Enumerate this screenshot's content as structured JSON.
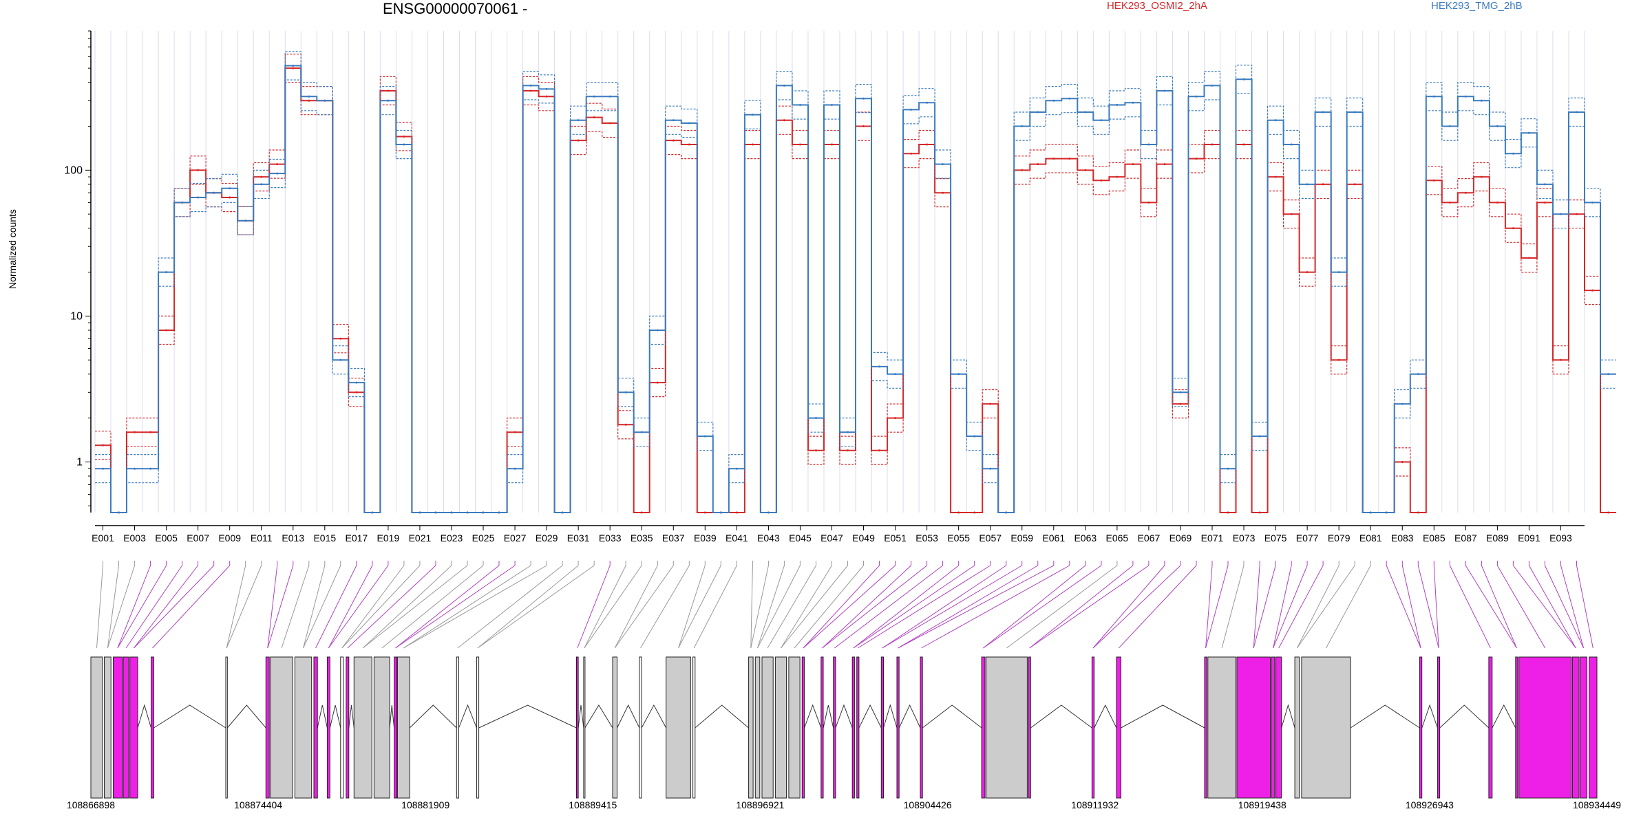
{
  "header": {
    "gene_title": "ENSG00000070061 -",
    "legend_a": "HEK293_OSMI2_2hA",
    "legend_b": "HEK293_TMG_2hB"
  },
  "colors": {
    "OSMI2": "#d62728",
    "TMG": "#3a7bbf",
    "exon_gray": "#cccccc",
    "exon_magenta": "#ee1fe6",
    "grid": "#dcdcf0",
    "connector_gray": "#999999",
    "connector_magenta": "#b040c0"
  },
  "chart_data": {
    "type": "line",
    "ylabel": "Normalized counts",
    "y_scale": "log",
    "ylim": [
      0.45,
      900
    ],
    "y_ticks": [
      "1",
      "10",
      "100"
    ],
    "x_tick_labels": [
      "E001",
      "E003",
      "E005",
      "E007",
      "E009",
      "E011",
      "E013",
      "E015",
      "E017",
      "E019",
      "E021",
      "E023",
      "E025",
      "E027",
      "E029",
      "E031",
      "E033",
      "E035",
      "E037",
      "E039",
      "E041",
      "E043",
      "E045",
      "E047",
      "E049",
      "E051",
      "E053",
      "E055",
      "E057",
      "E059",
      "E061",
      "E063",
      "E065",
      "E067",
      "E069",
      "E071",
      "E073",
      "E075",
      "E077",
      "E079",
      "E081",
      "E083",
      "E085",
      "E087",
      "E089",
      "E091",
      "E093"
    ],
    "exon_count": 94,
    "series": [
      {
        "name": "HEK293_OSMI2_2hA",
        "values": [
          1.3,
          0.45,
          1.6,
          1.6,
          8,
          60,
          100,
          70,
          65,
          45,
          90,
          110,
          500,
          300,
          300,
          7,
          3,
          0.45,
          350,
          170,
          0.45,
          0.45,
          0.45,
          0.45,
          0.45,
          0.45,
          1.6,
          350,
          320,
          0.45,
          160,
          230,
          210,
          1.8,
          0.45,
          3.5,
          160,
          150,
          0.45,
          0.45,
          0.45,
          150,
          0.45,
          220,
          150,
          1.2,
          150,
          1.2,
          200,
          1.2,
          2,
          130,
          150,
          70,
          0.45,
          0.45,
          2.5,
          0.45,
          100,
          110,
          120,
          120,
          100,
          85,
          90,
          110,
          60,
          110,
          2.5,
          120,
          150,
          0.45,
          150,
          0.45,
          90,
          50,
          20,
          80,
          5,
          80,
          0.45,
          0.45,
          1,
          0.45,
          85,
          60,
          70,
          90,
          60,
          40,
          25,
          60,
          5,
          50,
          15,
          0.45
        ]
      },
      {
        "name": "HEK293_TMG_2hB",
        "values": [
          0.9,
          0.45,
          0.9,
          0.9,
          20,
          60,
          65,
          70,
          75,
          45,
          80,
          95,
          520,
          320,
          300,
          5,
          3.5,
          0.45,
          300,
          150,
          0.45,
          0.45,
          0.45,
          0.45,
          0.45,
          0.45,
          0.9,
          380,
          360,
          0.45,
          220,
          320,
          320,
          3,
          1.6,
          8,
          220,
          210,
          1.5,
          0.45,
          0.9,
          240,
          0.45,
          380,
          280,
          2,
          280,
          1.6,
          310,
          4.5,
          4,
          260,
          290,
          110,
          4,
          1.5,
          0.9,
          0.45,
          200,
          250,
          300,
          310,
          250,
          220,
          280,
          290,
          150,
          350,
          3,
          320,
          380,
          0.9,
          420,
          1.5,
          220,
          150,
          80,
          250,
          20,
          250,
          0.45,
          0.45,
          2.5,
          4,
          320,
          200,
          320,
          300,
          200,
          130,
          180,
          80,
          50,
          250,
          60,
          4
        ]
      }
    ]
  },
  "gene_model": {
    "coordinate_labels": [
      "108866898",
      "108874404",
      "108881909",
      "108889415",
      "108896921",
      "108904426",
      "108911932",
      "108919438",
      "108926943",
      "108934449"
    ],
    "start": 108866898,
    "end": 108934449
  }
}
